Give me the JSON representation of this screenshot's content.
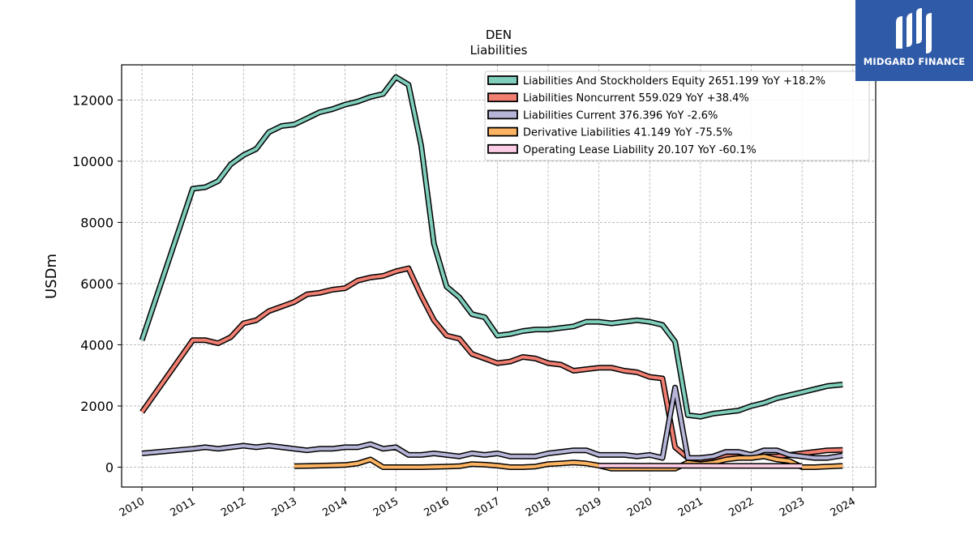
{
  "brand": {
    "name": "MIDGARD FINANCE",
    "bg_color": "#2f5aa8"
  },
  "chart_data": {
    "type": "line",
    "title": "DEN",
    "subtitle": "Liabilities",
    "xlabel": "",
    "ylabel": "USDm",
    "xlim": [
      2009.6,
      2024.45
    ],
    "ylim": [
      -650,
      13150
    ],
    "xticks": [
      2010,
      2011,
      2012,
      2013,
      2014,
      2015,
      2016,
      2017,
      2018,
      2019,
      2020,
      2021,
      2022,
      2023,
      2024
    ],
    "yticks": [
      0,
      2000,
      4000,
      6000,
      8000,
      10000,
      12000
    ],
    "grid": true,
    "legend_position": "top-right",
    "series": [
      {
        "name": "Liabilities And Stockholders Equity  2651.199 YoY +18.2%",
        "color": "#7fcdbb",
        "points": [
          [
            2010.0,
            4150
          ],
          [
            2011.0,
            9100
          ],
          [
            2011.25,
            9150
          ],
          [
            2011.5,
            9350
          ],
          [
            2011.75,
            9900
          ],
          [
            2012.0,
            10200
          ],
          [
            2012.25,
            10400
          ],
          [
            2012.5,
            10950
          ],
          [
            2012.75,
            11150
          ],
          [
            2013.0,
            11200
          ],
          [
            2013.25,
            11400
          ],
          [
            2013.5,
            11600
          ],
          [
            2013.75,
            11700
          ],
          [
            2014.0,
            11850
          ],
          [
            2014.25,
            11950
          ],
          [
            2014.5,
            12100
          ],
          [
            2014.75,
            12200
          ],
          [
            2015.0,
            12750
          ],
          [
            2015.25,
            12500
          ],
          [
            2015.5,
            10500
          ],
          [
            2015.75,
            7300
          ],
          [
            2016.0,
            5900
          ],
          [
            2016.25,
            5550
          ],
          [
            2016.5,
            5000
          ],
          [
            2016.75,
            4900
          ],
          [
            2017.0,
            4300
          ],
          [
            2017.25,
            4350
          ],
          [
            2017.5,
            4450
          ],
          [
            2017.75,
            4500
          ],
          [
            2018.0,
            4500
          ],
          [
            2018.25,
            4550
          ],
          [
            2018.5,
            4600
          ],
          [
            2018.75,
            4750
          ],
          [
            2019.0,
            4750
          ],
          [
            2019.25,
            4700
          ],
          [
            2019.5,
            4750
          ],
          [
            2019.75,
            4800
          ],
          [
            2020.0,
            4750
          ],
          [
            2020.25,
            4650
          ],
          [
            2020.5,
            4100
          ],
          [
            2020.75,
            1700
          ],
          [
            2021.0,
            1650
          ],
          [
            2021.25,
            1750
          ],
          [
            2021.5,
            1800
          ],
          [
            2021.75,
            1850
          ],
          [
            2022.0,
            2000
          ],
          [
            2022.25,
            2100
          ],
          [
            2022.5,
            2250
          ],
          [
            2022.75,
            2350
          ],
          [
            2023.0,
            2450
          ],
          [
            2023.25,
            2550
          ],
          [
            2023.5,
            2650
          ],
          [
            2023.8,
            2700
          ]
        ]
      },
      {
        "name": "Liabilities Noncurrent  559.029 YoY +38.4%",
        "color": "#f07f72",
        "points": [
          [
            2010.0,
            1800
          ],
          [
            2011.0,
            4150
          ],
          [
            2011.25,
            4150
          ],
          [
            2011.5,
            4050
          ],
          [
            2011.75,
            4250
          ],
          [
            2012.0,
            4700
          ],
          [
            2012.25,
            4800
          ],
          [
            2012.5,
            5100
          ],
          [
            2012.75,
            5250
          ],
          [
            2013.0,
            5400
          ],
          [
            2013.25,
            5650
          ],
          [
            2013.5,
            5700
          ],
          [
            2013.75,
            5800
          ],
          [
            2014.0,
            5850
          ],
          [
            2014.25,
            6100
          ],
          [
            2014.5,
            6200
          ],
          [
            2014.75,
            6250
          ],
          [
            2015.0,
            6400
          ],
          [
            2015.25,
            6500
          ],
          [
            2015.5,
            5600
          ],
          [
            2015.75,
            4800
          ],
          [
            2016.0,
            4300
          ],
          [
            2016.25,
            4200
          ],
          [
            2016.5,
            3700
          ],
          [
            2016.75,
            3550
          ],
          [
            2017.0,
            3400
          ],
          [
            2017.25,
            3450
          ],
          [
            2017.5,
            3600
          ],
          [
            2017.75,
            3550
          ],
          [
            2018.0,
            3400
          ],
          [
            2018.25,
            3350
          ],
          [
            2018.5,
            3150
          ],
          [
            2018.75,
            3200
          ],
          [
            2019.0,
            3250
          ],
          [
            2019.25,
            3250
          ],
          [
            2019.5,
            3150
          ],
          [
            2019.75,
            3100
          ],
          [
            2020.0,
            2950
          ],
          [
            2020.25,
            2900
          ],
          [
            2020.5,
            650
          ],
          [
            2020.75,
            300
          ],
          [
            2021.0,
            250
          ],
          [
            2021.25,
            300
          ],
          [
            2021.5,
            350
          ],
          [
            2021.75,
            350
          ],
          [
            2022.0,
            300
          ],
          [
            2022.25,
            350
          ],
          [
            2022.5,
            350
          ],
          [
            2022.75,
            400
          ],
          [
            2023.0,
            450
          ],
          [
            2023.25,
            500
          ],
          [
            2023.5,
            550
          ],
          [
            2023.8,
            560
          ]
        ]
      },
      {
        "name": "Liabilities Current  376.396 YoY -2.6%",
        "color": "#b6b5d8",
        "points": [
          [
            2010.0,
            450
          ],
          [
            2011.0,
            600
          ],
          [
            2011.25,
            650
          ],
          [
            2011.5,
            600
          ],
          [
            2011.75,
            650
          ],
          [
            2012.0,
            700
          ],
          [
            2012.25,
            650
          ],
          [
            2012.5,
            700
          ],
          [
            2012.75,
            650
          ],
          [
            2013.0,
            600
          ],
          [
            2013.25,
            550
          ],
          [
            2013.5,
            600
          ],
          [
            2013.75,
            600
          ],
          [
            2014.0,
            650
          ],
          [
            2014.25,
            650
          ],
          [
            2014.5,
            750
          ],
          [
            2014.75,
            600
          ],
          [
            2015.0,
            650
          ],
          [
            2015.25,
            400
          ],
          [
            2015.5,
            400
          ],
          [
            2015.75,
            450
          ],
          [
            2016.0,
            400
          ],
          [
            2016.25,
            350
          ],
          [
            2016.5,
            450
          ],
          [
            2016.75,
            400
          ],
          [
            2017.0,
            450
          ],
          [
            2017.25,
            350
          ],
          [
            2017.5,
            350
          ],
          [
            2017.75,
            350
          ],
          [
            2018.0,
            450
          ],
          [
            2018.25,
            500
          ],
          [
            2018.5,
            550
          ],
          [
            2018.75,
            550
          ],
          [
            2019.0,
            400
          ],
          [
            2019.25,
            400
          ],
          [
            2019.5,
            400
          ],
          [
            2019.75,
            350
          ],
          [
            2020.0,
            400
          ],
          [
            2020.25,
            300
          ],
          [
            2020.5,
            2600
          ],
          [
            2020.75,
            300
          ],
          [
            2021.0,
            300
          ],
          [
            2021.25,
            350
          ],
          [
            2021.5,
            500
          ],
          [
            2021.75,
            500
          ],
          [
            2022.0,
            400
          ],
          [
            2022.25,
            550
          ],
          [
            2022.5,
            550
          ],
          [
            2022.75,
            400
          ],
          [
            2023.0,
            350
          ],
          [
            2023.25,
            300
          ],
          [
            2023.5,
            300
          ],
          [
            2023.8,
            380
          ]
        ]
      },
      {
        "name": "Derivative Liabilities  41.149 YoY -75.5%",
        "color": "#fdb462",
        "points": [
          [
            2013.0,
            30
          ],
          [
            2013.25,
            40
          ],
          [
            2013.5,
            50
          ],
          [
            2013.75,
            60
          ],
          [
            2014.0,
            70
          ],
          [
            2014.25,
            120
          ],
          [
            2014.5,
            250
          ],
          [
            2014.75,
            0
          ],
          [
            2015.0,
            0
          ],
          [
            2015.25,
            0
          ],
          [
            2015.5,
            0
          ],
          [
            2015.75,
            10
          ],
          [
            2016.0,
            20
          ],
          [
            2016.25,
            30
          ],
          [
            2016.5,
            100
          ],
          [
            2016.75,
            80
          ],
          [
            2017.0,
            50
          ],
          [
            2017.25,
            0
          ],
          [
            2017.5,
            0
          ],
          [
            2017.75,
            20
          ],
          [
            2018.0,
            100
          ],
          [
            2018.25,
            120
          ],
          [
            2018.5,
            150
          ],
          [
            2018.75,
            120
          ],
          [
            2019.0,
            50
          ],
          [
            2019.25,
            -50
          ],
          [
            2019.5,
            -50
          ],
          [
            2019.75,
            -50
          ],
          [
            2020.0,
            -50
          ],
          [
            2020.25,
            -50
          ],
          [
            2020.5,
            -50
          ],
          [
            2020.75,
            150
          ],
          [
            2021.0,
            100
          ],
          [
            2021.25,
            150
          ],
          [
            2021.5,
            250
          ],
          [
            2021.75,
            300
          ],
          [
            2022.0,
            300
          ],
          [
            2022.25,
            350
          ],
          [
            2022.5,
            250
          ],
          [
            2022.75,
            200
          ],
          [
            2023.0,
            0
          ],
          [
            2023.25,
            0
          ],
          [
            2023.5,
            20
          ],
          [
            2023.8,
            41
          ]
        ]
      },
      {
        "name": "Operating Lease Liability  20.107 YoY -60.1%",
        "color": "#fccde5",
        "points": [
          [
            2019.0,
            50
          ],
          [
            2023.0,
            40
          ]
        ]
      }
    ]
  }
}
